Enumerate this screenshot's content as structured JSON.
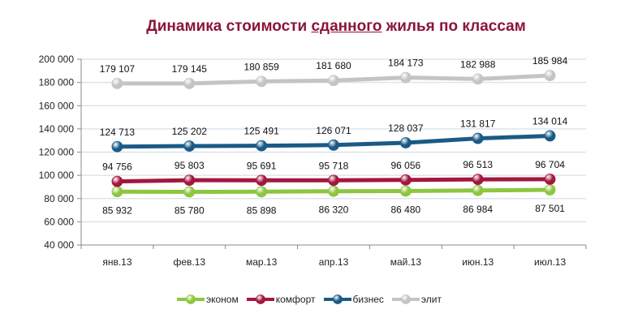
{
  "title": {
    "part1": "Динамика стоимости ",
    "underlined": "сданного",
    "part2": " жилья по классам"
  },
  "chart_data": {
    "type": "line",
    "title": "Динамика стоимости сданного жилья по классам",
    "categories": [
      "янв.13",
      "фев.13",
      "мар.13",
      "апр.13",
      "май.13",
      "июн.13",
      "июл.13"
    ],
    "series": [
      {
        "name": "эконом",
        "color": "#8dc63f",
        "values": [
          85932,
          85780,
          85898,
          86320,
          86480,
          86984,
          87501
        ],
        "labels": [
          "85 932",
          "85 780",
          "85 898",
          "86 320",
          "86 480",
          "86 984",
          "87 501"
        ],
        "label_pos": "below"
      },
      {
        "name": "комфорт",
        "color": "#a3173f",
        "values": [
          94756,
          95803,
          95691,
          95718,
          96056,
          96513,
          96704
        ],
        "labels": [
          "94 756",
          "95 803",
          "95 691",
          "95 718",
          "96 056",
          "96 513",
          "96 704"
        ],
        "label_pos": "above"
      },
      {
        "name": "бизнес",
        "color": "#1b5a86",
        "values": [
          124713,
          125202,
          125491,
          126071,
          128037,
          131817,
          134014
        ],
        "labels": [
          "124 713",
          "125 202",
          "125 491",
          "126 071",
          "128 037",
          "131 817",
          "134 014"
        ],
        "label_pos": "above"
      },
      {
        "name": "элит",
        "color": "#c4c4c4",
        "values": [
          179107,
          179145,
          180859,
          181680,
          184173,
          182988,
          185984
        ],
        "labels": [
          "179 107",
          "179 145",
          "180 859",
          "181 680",
          "184 173",
          "182 988",
          "185 984"
        ],
        "label_pos": "above"
      }
    ],
    "yticks": [
      "200 000",
      "180 000",
      "160 000",
      "140 000",
      "120 000",
      "100 000",
      "80 000",
      "60 000",
      "40 000"
    ],
    "ylim": [
      40000,
      200000
    ],
    "xlabel": "",
    "ylabel": "",
    "grid": true,
    "legend_position": "bottom"
  }
}
